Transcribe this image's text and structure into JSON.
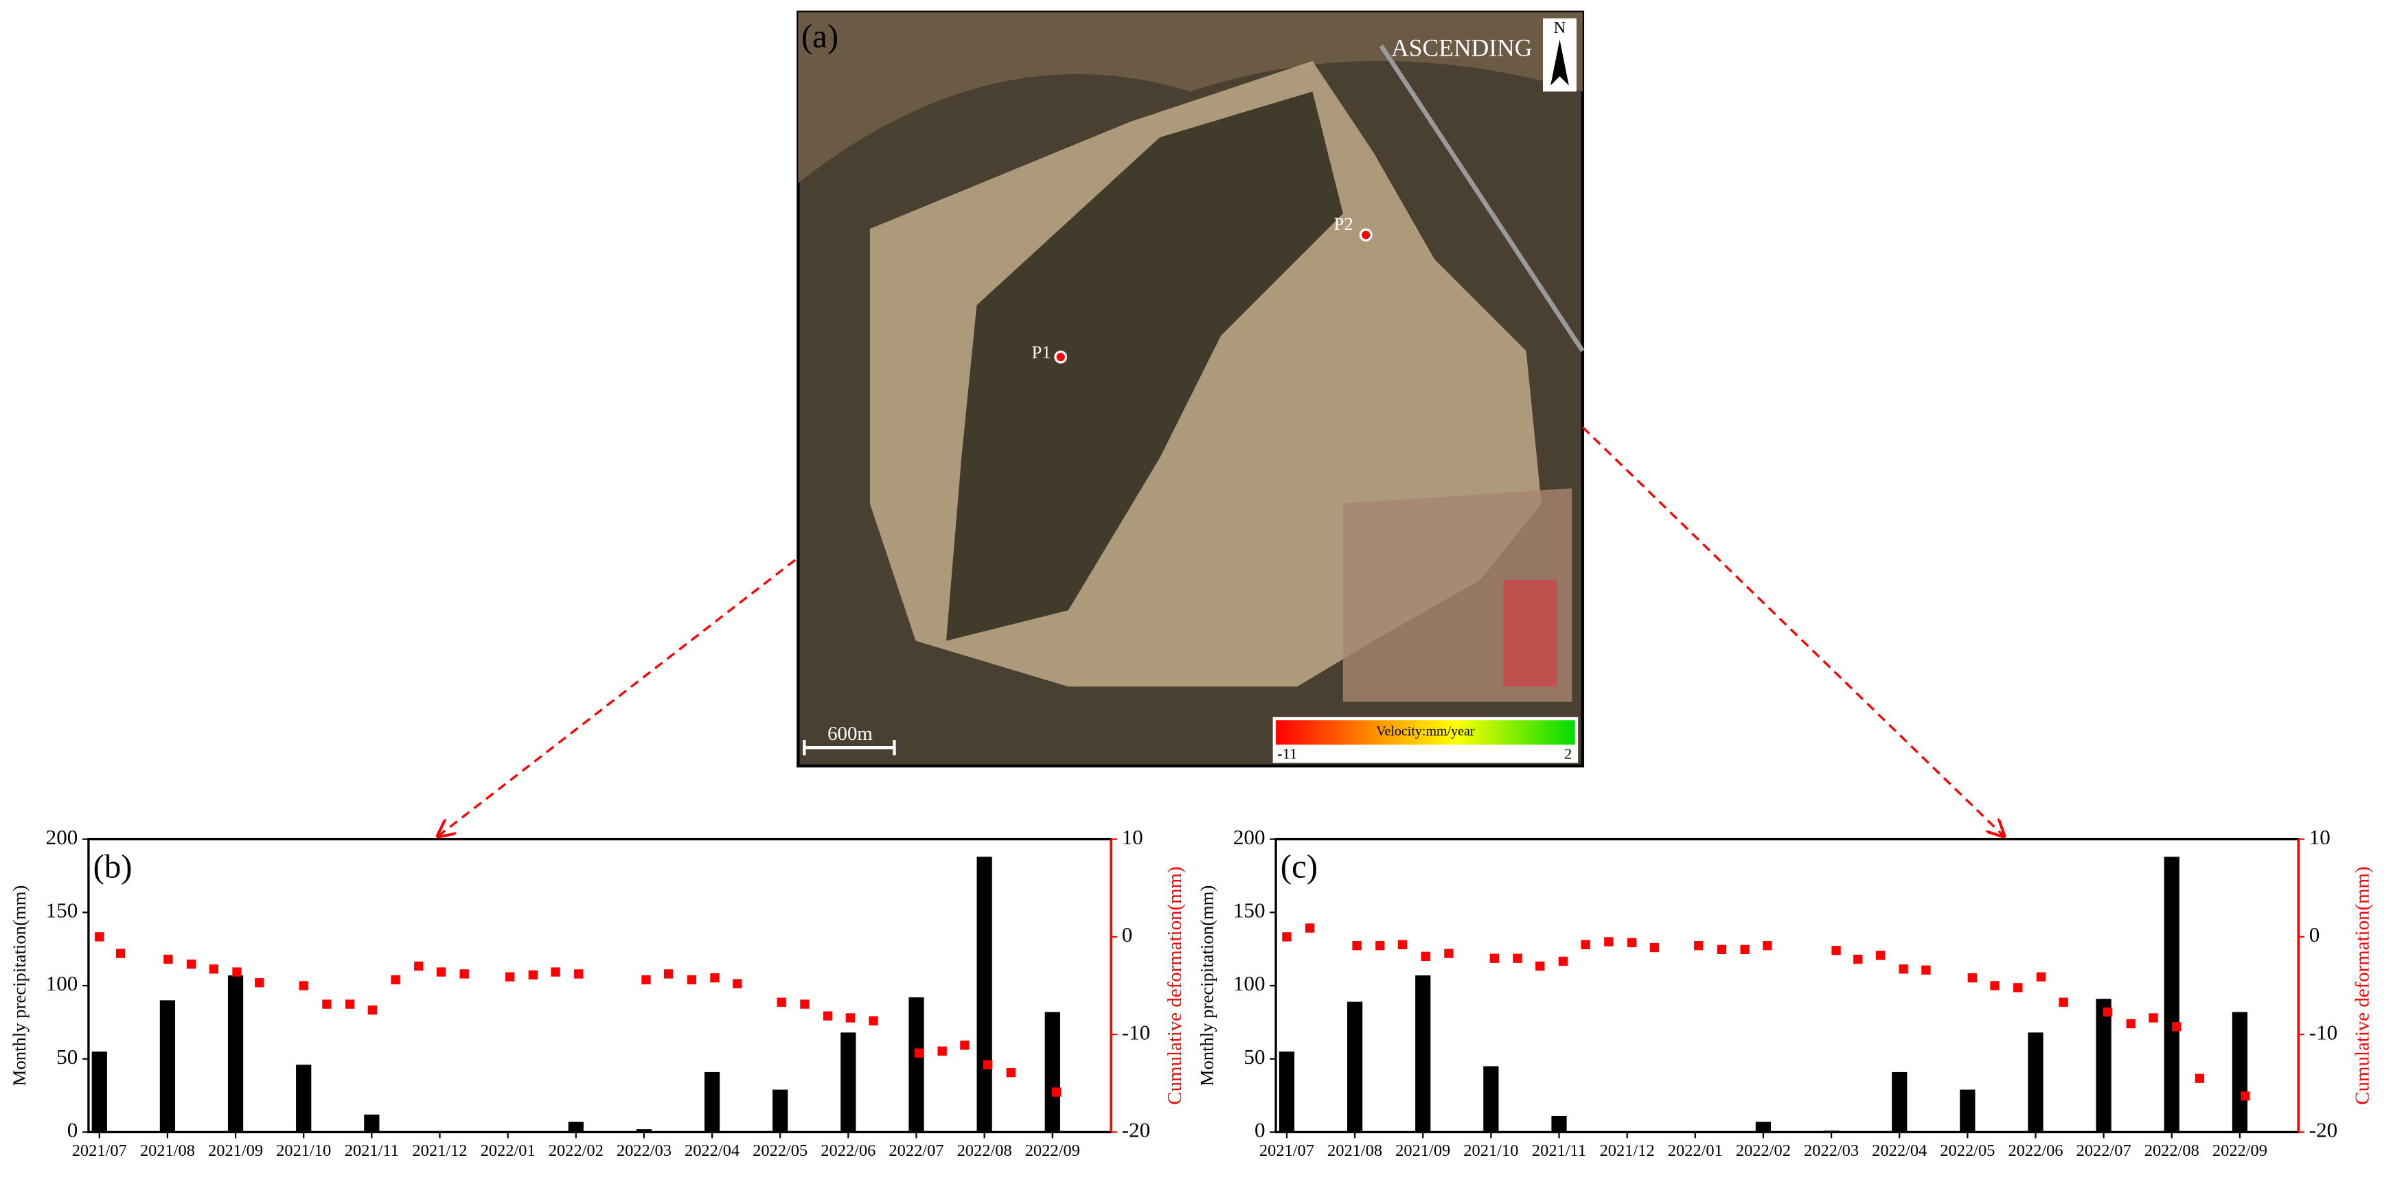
{
  "map": {
    "label": "(a)",
    "orbit": "ASCENDING",
    "north": "N",
    "points": [
      {
        "label": "P1"
      },
      {
        "label": "P2"
      }
    ],
    "scale_bar": "600m",
    "legend": {
      "title": "Velocity:mm/year",
      "min": -11,
      "max": 2
    }
  },
  "chart_data": [
    {
      "type": "combo",
      "label": "(b)",
      "ylabel": "Monthly precipitation(mm)",
      "y2label": "Cumulative deformation(mm)",
      "xlim": [
        -0.16,
        14.86
      ],
      "xticks": [
        {
          "value": 0,
          "label": "2021/07"
        },
        {
          "value": 1,
          "label": "2021/08"
        },
        {
          "value": 2,
          "label": "2021/09"
        },
        {
          "value": 3,
          "label": "2021/10"
        },
        {
          "value": 4,
          "label": "2021/11"
        },
        {
          "value": 5,
          "label": "2021/12"
        },
        {
          "value": 6,
          "label": "2022/01"
        },
        {
          "value": 7,
          "label": "2022/02"
        },
        {
          "value": 8,
          "label": "2022/03"
        },
        {
          "value": 9,
          "label": "2022/04"
        },
        {
          "value": 10,
          "label": "2022/05"
        },
        {
          "value": 11,
          "label": "2022/06"
        },
        {
          "value": 12,
          "label": "2022/07"
        },
        {
          "value": 13,
          "label": "2022/08"
        },
        {
          "value": 14,
          "label": "2022/09"
        }
      ],
      "ylim": [
        0,
        200
      ],
      "yticks": [
        0,
        50,
        100,
        150,
        200
      ],
      "y2lim": [
        -20,
        10
      ],
      "y2ticks": [
        -20,
        -10,
        0,
        10
      ],
      "y2color": "#ff0000",
      "series": [
        {
          "type": "bar",
          "color": "#000000",
          "x": [
            0,
            1,
            2,
            3,
            4,
            5,
            6,
            7,
            8,
            9,
            10,
            11,
            12,
            13,
            14
          ],
          "values": [
            55,
            90,
            107,
            46,
            12,
            0,
            0,
            7,
            2,
            41,
            29,
            68,
            92,
            188,
            82
          ]
        },
        {
          "type": "scatter",
          "axis": "y2",
          "color": "#ff0000",
          "x": [
            0,
            0.31,
            1.01,
            1.35,
            1.68,
            2.02,
            2.35,
            3.0,
            3.34,
            3.68,
            4.01,
            4.35,
            4.69,
            5.02,
            5.36,
            6.03,
            6.37,
            6.7,
            7.04,
            8.03,
            8.36,
            8.7,
            9.04,
            9.37,
            10.02,
            10.36,
            10.7,
            11.03,
            11.37,
            12.04,
            12.38,
            12.71,
            13.05,
            13.39,
            14.06
          ],
          "values": [
            0,
            -1.7,
            -2.3,
            -2.8,
            -3.3,
            -3.6,
            -4.7,
            -5.0,
            -6.9,
            -6.9,
            -7.5,
            -4.4,
            -3.0,
            -3.6,
            -3.8,
            -4.1,
            -3.9,
            -3.6,
            -3.8,
            -4.4,
            -3.8,
            -4.4,
            -4.2,
            -4.8,
            -6.7,
            -6.9,
            -8.1,
            -8.3,
            -8.6,
            -11.9,
            -11.7,
            -11.1,
            -13.1,
            -13.9,
            -15.9
          ]
        }
      ]
    },
    {
      "type": "combo",
      "label": "(c)",
      "ylabel": "Monthly precipitation(mm)",
      "y2label": "Cumulative deformation(mm)",
      "xlim": [
        -0.16,
        14.86
      ],
      "xticks": [
        {
          "value": 0,
          "label": "2021/07"
        },
        {
          "value": 1,
          "label": "2021/08"
        },
        {
          "value": 2,
          "label": "2021/09"
        },
        {
          "value": 3,
          "label": "2021/10"
        },
        {
          "value": 4,
          "label": "2021/11"
        },
        {
          "value": 5,
          "label": "2021/12"
        },
        {
          "value": 6,
          "label": "2022/01"
        },
        {
          "value": 7,
          "label": "2022/02"
        },
        {
          "value": 8,
          "label": "2022/03"
        },
        {
          "value": 9,
          "label": "2022/04"
        },
        {
          "value": 10,
          "label": "2022/05"
        },
        {
          "value": 11,
          "label": "2022/06"
        },
        {
          "value": 12,
          "label": "2022/07"
        },
        {
          "value": 13,
          "label": "2022/08"
        },
        {
          "value": 14,
          "label": "2022/09"
        }
      ],
      "ylim": [
        0,
        200
      ],
      "yticks": [
        0,
        50,
        100,
        150,
        200
      ],
      "y2lim": [
        -20,
        10
      ],
      "y2ticks": [
        -20,
        -10,
        0,
        10
      ],
      "y2color": "#ff0000",
      "series": [
        {
          "type": "bar",
          "color": "#000000",
          "x": [
            0,
            1,
            2,
            3,
            4,
            5,
            6,
            7,
            8,
            9,
            10,
            11,
            12,
            13,
            14
          ],
          "values": [
            55,
            89,
            107,
            45,
            11,
            0,
            0,
            7,
            1,
            41,
            29,
            68,
            91,
            188,
            82
          ]
        },
        {
          "type": "scatter",
          "axis": "y2",
          "color": "#ff0000",
          "x": [
            0,
            0.34,
            1.03,
            1.37,
            1.7,
            2.04,
            2.38,
            3.05,
            3.39,
            3.72,
            4.06,
            4.39,
            4.73,
            5.07,
            5.4,
            6.05,
            6.39,
            6.73,
            7.06,
            8.07,
            8.39,
            8.72,
            9.06,
            9.39,
            10.07,
            10.4,
            10.74,
            11.08,
            11.41,
            12.06,
            12.4,
            12.73,
            13.07,
            13.41,
            14.08
          ],
          "values": [
            0,
            0.9,
            -0.9,
            -0.9,
            -0.8,
            -2.0,
            -1.7,
            -2.2,
            -2.2,
            -3.0,
            -2.5,
            -0.8,
            -0.5,
            -0.6,
            -1.1,
            -0.9,
            -1.3,
            -1.3,
            -0.9,
            -1.4,
            -2.3,
            -1.9,
            -3.3,
            -3.4,
            -4.2,
            -5.0,
            -5.2,
            -4.1,
            -6.7,
            -7.7,
            -8.9,
            -8.3,
            -9.2,
            -14.5,
            -16.3
          ]
        }
      ]
    }
  ]
}
